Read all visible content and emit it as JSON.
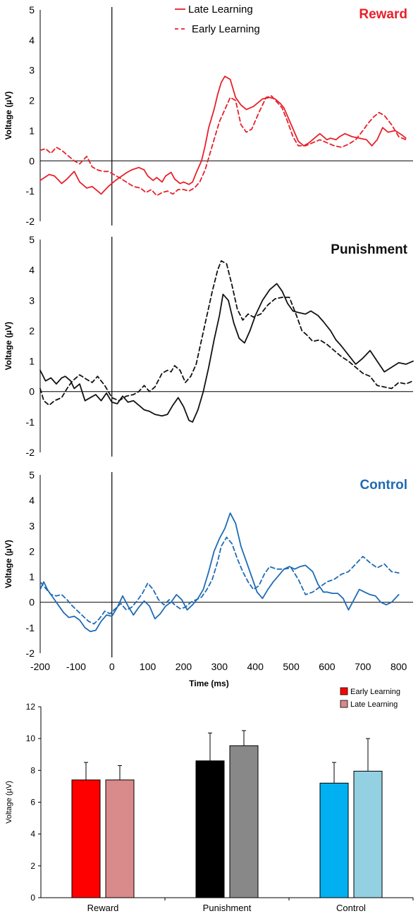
{
  "chart_data": [
    {
      "type": "line",
      "title": "Reward",
      "title_color": "#e8202a",
      "color": "#e8202a",
      "ylabel": "Voltage (µV)",
      "xlabel": "",
      "xlim": [
        -200,
        840
      ],
      "ylim": [
        -2,
        5
      ],
      "yticks": [
        "-2",
        "-1",
        "0",
        "1",
        "2",
        "3",
        "4",
        "5"
      ],
      "legend": {
        "position": "top-center",
        "entries": [
          "Late Learning",
          "Early Learning"
        ]
      },
      "series": [
        {
          "name": "Late Learning",
          "style": "solid",
          "x": [
            -200,
            -175,
            -160,
            -140,
            -125,
            -105,
            -90,
            -70,
            -55,
            -40,
            -30,
            -10,
            10,
            40,
            55,
            75,
            90,
            100,
            115,
            125,
            140,
            150,
            165,
            175,
            190,
            200,
            215,
            225,
            235,
            250,
            260,
            270,
            285,
            295,
            305,
            315,
            330,
            345,
            360,
            375,
            395,
            420,
            440,
            455,
            470,
            480,
            500,
            520,
            535,
            550,
            565,
            580,
            600,
            610,
            625,
            635,
            650,
            670,
            690,
            710,
            725,
            740,
            755,
            770,
            790,
            810,
            820
          ],
          "y": [
            -0.65,
            -0.45,
            -0.5,
            -0.75,
            -0.6,
            -0.35,
            -0.7,
            -0.9,
            -0.85,
            -1.0,
            -1.1,
            -0.85,
            -0.65,
            -0.4,
            -0.3,
            -0.22,
            -0.3,
            -0.5,
            -0.65,
            -0.55,
            -0.7,
            -0.5,
            -0.38,
            -0.6,
            -0.75,
            -0.7,
            -0.78,
            -0.7,
            -0.4,
            0.0,
            0.5,
            1.1,
            1.7,
            2.2,
            2.6,
            2.8,
            2.7,
            2.1,
            1.85,
            1.7,
            1.8,
            2.05,
            2.1,
            2.05,
            1.9,
            1.75,
            1.2,
            0.65,
            0.5,
            0.6,
            0.75,
            0.9,
            0.7,
            0.75,
            0.7,
            0.8,
            0.9,
            0.8,
            0.75,
            0.7,
            0.5,
            0.7,
            1.1,
            0.95,
            1.0,
            0.85,
            0.75
          ]
        },
        {
          "name": "Early Learning",
          "style": "dashed",
          "x": [
            -200,
            -185,
            -170,
            -155,
            -140,
            -125,
            -105,
            -90,
            -70,
            -55,
            -40,
            -25,
            -10,
            5,
            20,
            40,
            60,
            80,
            95,
            110,
            125,
            140,
            155,
            170,
            185,
            200,
            215,
            230,
            245,
            260,
            275,
            290,
            300,
            315,
            330,
            345,
            360,
            375,
            390,
            410,
            430,
            445,
            460,
            475,
            490,
            505,
            520,
            540,
            560,
            580,
            600,
            620,
            640,
            660,
            680,
            700,
            715,
            730,
            745,
            760,
            780,
            800,
            820
          ],
          "y": [
            0.35,
            0.4,
            0.25,
            0.45,
            0.35,
            0.2,
            0.0,
            -0.1,
            0.15,
            -0.2,
            -0.3,
            -0.35,
            -0.35,
            -0.45,
            -0.55,
            -0.7,
            -0.85,
            -0.9,
            -1.05,
            -0.95,
            -1.15,
            -1.05,
            -1.0,
            -1.1,
            -0.95,
            -0.95,
            -1.0,
            -0.9,
            -0.7,
            -0.3,
            0.3,
            0.9,
            1.3,
            1.7,
            2.1,
            2.0,
            1.2,
            0.95,
            1.05,
            1.6,
            2.1,
            2.15,
            1.95,
            1.75,
            1.3,
            0.8,
            0.5,
            0.5,
            0.6,
            0.7,
            0.6,
            0.5,
            0.45,
            0.55,
            0.7,
            1.0,
            1.25,
            1.45,
            1.6,
            1.5,
            1.2,
            0.8,
            0.7
          ]
        }
      ]
    },
    {
      "type": "line",
      "title": "Punishment",
      "title_color": "#111111",
      "color": "#111111",
      "ylabel": "Voltage (µV)",
      "xlabel": "",
      "xlim": [
        -200,
        840
      ],
      "ylim": [
        -2,
        5
      ],
      "yticks": [
        "-2",
        "-1",
        "0",
        "1",
        "2",
        "3",
        "4",
        "5"
      ],
      "legend": {
        "position": "none",
        "entries": []
      },
      "series": [
        {
          "name": "",
          "style": "solid",
          "x": [
            -200,
            -185,
            -170,
            -155,
            -140,
            -130,
            -115,
            -105,
            -90,
            -75,
            -60,
            -45,
            -30,
            -15,
            0,
            15,
            30,
            45,
            60,
            75,
            90,
            105,
            120,
            140,
            155,
            170,
            185,
            200,
            215,
            225,
            240,
            255,
            270,
            285,
            300,
            310,
            325,
            340,
            355,
            370,
            385,
            400,
            420,
            440,
            460,
            475,
            490,
            505,
            520,
            540,
            555,
            575,
            590,
            610,
            625,
            640,
            660,
            680,
            700,
            720,
            740,
            760,
            780,
            800,
            820,
            840
          ],
          "y": [
            0.7,
            0.35,
            0.45,
            0.25,
            0.45,
            0.5,
            0.35,
            0.1,
            0.25,
            -0.3,
            -0.2,
            -0.1,
            -0.3,
            -0.05,
            -0.35,
            -0.4,
            -0.15,
            -0.35,
            -0.3,
            -0.45,
            -0.6,
            -0.65,
            -0.75,
            -0.8,
            -0.75,
            -0.45,
            -0.2,
            -0.5,
            -0.95,
            -1.0,
            -0.6,
            0.0,
            0.8,
            1.7,
            2.5,
            3.2,
            3.0,
            2.25,
            1.75,
            1.6,
            2.0,
            2.5,
            3.0,
            3.35,
            3.55,
            3.3,
            2.9,
            2.65,
            2.6,
            2.55,
            2.65,
            2.5,
            2.3,
            2.0,
            1.7,
            1.5,
            1.2,
            0.9,
            1.1,
            1.35,
            1.0,
            0.65,
            0.8,
            0.95,
            0.9,
            1.0
          ]
        },
        {
          "name": "",
          "style": "dashed",
          "x": [
            -200,
            -190,
            -175,
            -160,
            -140,
            -125,
            -110,
            -90,
            -70,
            -55,
            -40,
            -20,
            0,
            20,
            40,
            60,
            75,
            90,
            105,
            120,
            140,
            155,
            165,
            175,
            190,
            205,
            220,
            235,
            250,
            265,
            280,
            295,
            305,
            320,
            335,
            350,
            365,
            380,
            395,
            415,
            435,
            455,
            475,
            495,
            515,
            530,
            545,
            560,
            580,
            600,
            620,
            640,
            660,
            680,
            700,
            720,
            740,
            760,
            780,
            800,
            820,
            840
          ],
          "y": [
            0.1,
            -0.3,
            -0.45,
            -0.3,
            -0.2,
            0.1,
            0.35,
            0.55,
            0.4,
            0.3,
            0.5,
            0.2,
            -0.2,
            -0.3,
            -0.15,
            -0.1,
            0.0,
            0.2,
            0.0,
            0.15,
            0.6,
            0.7,
            0.65,
            0.85,
            0.7,
            0.3,
            0.5,
            0.9,
            1.7,
            2.5,
            3.3,
            4.0,
            4.3,
            4.2,
            3.5,
            2.7,
            2.35,
            2.55,
            2.45,
            2.55,
            2.85,
            3.05,
            3.1,
            3.1,
            2.5,
            2.0,
            1.85,
            1.65,
            1.7,
            1.55,
            1.35,
            1.15,
            1.0,
            0.8,
            0.6,
            0.5,
            0.2,
            0.15,
            0.1,
            0.3,
            0.25,
            0.35
          ]
        }
      ]
    },
    {
      "type": "line",
      "title": "Control",
      "title_color": "#1f6bb5",
      "color": "#1f6bb5",
      "ylabel": "Voltage (µV)",
      "xlabel": "Time (ms)",
      "xlim": [
        -200,
        840
      ],
      "ylim": [
        -2,
        5
      ],
      "yticks": [
        "-2",
        "-1",
        "0",
        "1",
        "2",
        "3",
        "4",
        "5"
      ],
      "xticks": [
        "-200",
        "-100",
        "0",
        "100",
        "200",
        "300",
        "400",
        "500",
        "600",
        "700",
        "800"
      ],
      "legend": {
        "position": "none",
        "entries": []
      },
      "series": [
        {
          "name": "",
          "style": "solid",
          "x": [
            -200,
            -190,
            -180,
            -165,
            -150,
            -135,
            -120,
            -105,
            -90,
            -75,
            -60,
            -45,
            -30,
            -15,
            0,
            15,
            30,
            45,
            60,
            75,
            90,
            105,
            120,
            135,
            150,
            165,
            180,
            195,
            210,
            225,
            240,
            255,
            270,
            285,
            300,
            315,
            330,
            345,
            360,
            375,
            390,
            405,
            420,
            435,
            450,
            465,
            480,
            495,
            510,
            525,
            540,
            560,
            575,
            590,
            600,
            615,
            630,
            645,
            660,
            675,
            690,
            705,
            720,
            735,
            750,
            765,
            780,
            800
          ],
          "y": [
            0.5,
            0.8,
            0.5,
            0.2,
            -0.1,
            -0.4,
            -0.6,
            -0.55,
            -0.7,
            -1.0,
            -1.15,
            -1.1,
            -0.75,
            -0.5,
            -0.55,
            -0.2,
            0.25,
            -0.15,
            -0.5,
            -0.2,
            0.05,
            -0.15,
            -0.65,
            -0.45,
            -0.15,
            0.0,
            0.3,
            0.1,
            -0.3,
            -0.1,
            0.15,
            0.5,
            1.2,
            2.0,
            2.5,
            2.9,
            3.5,
            3.1,
            2.2,
            1.6,
            1.0,
            0.4,
            0.15,
            0.5,
            0.8,
            1.05,
            1.3,
            1.4,
            1.3,
            1.4,
            1.45,
            1.2,
            0.7,
            0.4,
            0.4,
            0.35,
            0.35,
            0.15,
            -0.3,
            0.1,
            0.5,
            0.4,
            0.3,
            0.25,
            0.0,
            -0.1,
            0.0,
            0.3
          ]
        },
        {
          "name": "",
          "style": "dashed",
          "x": [
            -200,
            -185,
            -170,
            -155,
            -140,
            -125,
            -110,
            -95,
            -80,
            -65,
            -50,
            -35,
            -20,
            -5,
            10,
            25,
            40,
            55,
            70,
            85,
            100,
            115,
            130,
            145,
            160,
            175,
            190,
            205,
            220,
            235,
            250,
            265,
            280,
            295,
            305,
            320,
            335,
            350,
            365,
            380,
            395,
            410,
            425,
            440,
            460,
            480,
            500,
            520,
            540,
            560,
            580,
            600,
            620,
            640,
            660,
            680,
            700,
            720,
            740,
            760,
            780,
            800
          ],
          "y": [
            0.8,
            0.55,
            0.3,
            0.25,
            0.3,
            0.1,
            -0.15,
            -0.35,
            -0.55,
            -0.75,
            -0.85,
            -0.65,
            -0.35,
            -0.45,
            -0.25,
            -0.05,
            -0.3,
            -0.2,
            0.05,
            0.35,
            0.75,
            0.5,
            0.1,
            -0.1,
            0.1,
            -0.1,
            -0.25,
            -0.2,
            0.0,
            0.1,
            0.2,
            0.5,
            0.9,
            1.6,
            2.2,
            2.55,
            2.3,
            1.7,
            1.2,
            0.8,
            0.5,
            0.65,
            1.1,
            1.4,
            1.3,
            1.3,
            1.35,
            0.9,
            0.3,
            0.4,
            0.6,
            0.8,
            0.9,
            1.1,
            1.2,
            1.5,
            1.8,
            1.55,
            1.35,
            1.5,
            1.2,
            1.15
          ]
        }
      ]
    },
    {
      "type": "bar",
      "title": "",
      "ylabel": "Voltage (µV)",
      "xlabel": "",
      "ylim": [
        0,
        12
      ],
      "yticks": [
        "0",
        "2",
        "4",
        "6",
        "8",
        "10",
        "12"
      ],
      "categories": [
        "Reward",
        "Punishment",
        "Control"
      ],
      "legend": {
        "position": "top-right",
        "entries": [
          "Early Learning",
          "Late Learning"
        ]
      },
      "series": [
        {
          "name": "Early Learning",
          "values": [
            7.4,
            8.6,
            7.2
          ],
          "errors": [
            1.1,
            1.75,
            1.3
          ],
          "colors": [
            "#ff0000",
            "#000000",
            "#00b0f0"
          ]
        },
        {
          "name": "Late Learning",
          "values": [
            7.4,
            9.55,
            7.95
          ],
          "errors": [
            0.9,
            0.95,
            2.05
          ],
          "colors": [
            "#d98a8a",
            "#888888",
            "#92d0e2"
          ]
        }
      ],
      "legend_colors": [
        "#ff0000",
        "#d98a8a"
      ]
    }
  ]
}
